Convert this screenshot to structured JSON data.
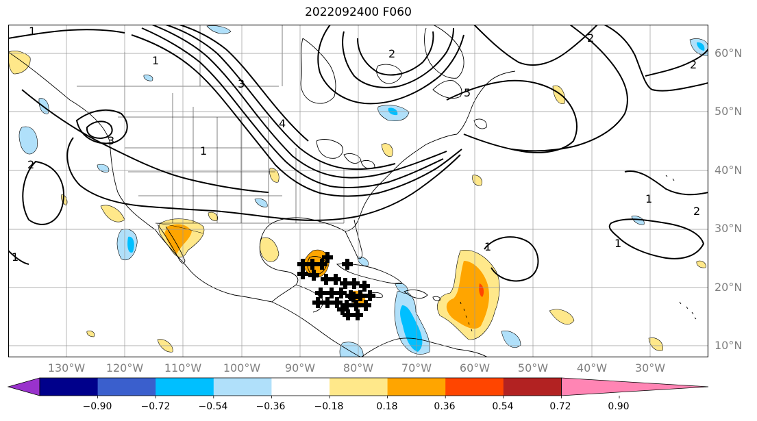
{
  "title": "2022092400 F060",
  "lat_labels": [
    "60°N",
    "50°N",
    "40°N",
    "30°N",
    "20°N",
    "10°N"
  ],
  "lon_labels": [
    "130°W",
    "120°W",
    "110°W",
    "100°W",
    "90°W",
    "80°W",
    "70°W",
    "60°W",
    "50°W",
    "40°W",
    "30°W"
  ],
  "colorbar": {
    "ticks": [
      "−0.90",
      "−0.72",
      "−0.54",
      "−0.36",
      "−0.18",
      "0.18",
      "0.36",
      "0.54",
      "0.72",
      "0.90"
    ],
    "colors": [
      "#9932cc",
      "#00008b",
      "#3a5fcd",
      "#00bfff",
      "#b0e0fa",
      "#ffffff",
      "#ffe88a",
      "#ffa500",
      "#ff4500",
      "#b22222",
      "#ff85b4"
    ]
  },
  "contour_labels": [
    "1",
    "2",
    "3",
    "4",
    "5"
  ]
}
